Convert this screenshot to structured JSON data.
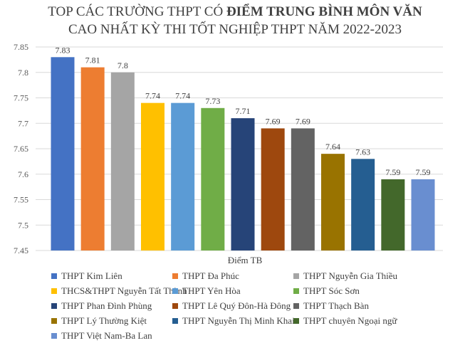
{
  "title_line1_normal": "TOP CÁC TRƯỜNG THPT CÓ ",
  "title_line1_bold": "ĐIỂM TRUNG BÌNH MÔN VĂN",
  "title_line2": "CAO NHẤT KỲ THI TỐT NGHIỆP THPT NĂM 2022-2023",
  "chart_data": {
    "type": "bar",
    "title": "TOP CÁC TRƯỜNG THPT CÓ ĐIỂM TRUNG BÌNH MÔN VĂN CAO NHẤT KỲ THI TỐT NGHIỆP THPT NĂM 2022-2023",
    "xlabel": "Điểm TB",
    "ylabel": "",
    "ylim": [
      7.45,
      7.85
    ],
    "yticks": [
      "7.45",
      "7.5",
      "7.55",
      "7.6",
      "7.65",
      "7.7",
      "7.75",
      "7.8",
      "7.85"
    ],
    "grid": true,
    "legend_position": "bottom",
    "series": [
      {
        "name": "THPT Kim Liên",
        "value": 7.83,
        "label": "7.83",
        "color": "#4472C4"
      },
      {
        "name": "THPT Đa Phúc",
        "value": 7.81,
        "label": "7.81",
        "color": "#ED7D31"
      },
      {
        "name": "THPT Nguyễn Gia Thiều",
        "value": 7.8,
        "label": "7.8",
        "color": "#A5A5A5"
      },
      {
        "name": "THCS&THPT Nguyễn Tất Thành",
        "value": 7.74,
        "label": "7.74",
        "color": "#FFC000"
      },
      {
        "name": "THPT Yên Hòa",
        "value": 7.74,
        "label": "7.74",
        "color": "#5B9BD5"
      },
      {
        "name": "THPT Sóc Sơn",
        "value": 7.73,
        "label": "7.73",
        "color": "#70AD47"
      },
      {
        "name": "THPT Phan Đình Phùng",
        "value": 7.71,
        "label": "7.71",
        "color": "#264478"
      },
      {
        "name": "THPT Lê Quý Đôn-Hà Đông",
        "value": 7.69,
        "label": "7.69",
        "color": "#9E480E"
      },
      {
        "name": "THPT Thạch Bàn",
        "value": 7.69,
        "label": "7.69",
        "color": "#636363"
      },
      {
        "name": "THPT Lý Thường Kiệt",
        "value": 7.64,
        "label": "7.64",
        "color": "#997300"
      },
      {
        "name": "THPT Nguyễn Thị Minh Khai",
        "value": 7.63,
        "label": "7.63",
        "color": "#255E91"
      },
      {
        "name": "THPT chuyên Ngoại ngữ",
        "value": 7.59,
        "label": "7.59",
        "color": "#43682B"
      },
      {
        "name": "THPT Việt Nam-Ba Lan",
        "value": 7.59,
        "label": "7.59",
        "color": "#698ED0"
      }
    ]
  }
}
